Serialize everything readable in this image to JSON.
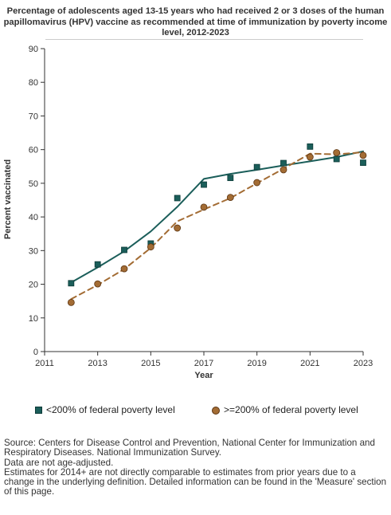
{
  "title_lines": [
    "Percentage of adolescents aged 13-15 years who had received 2 or 3 doses of the human",
    "papillomavirus (HPV) vaccine as recommended at time of immunization by poverty income",
    "level, 2012-2023"
  ],
  "footer": {
    "source": "Source: Centers for Disease Control and Prevention, National Center for Immunization and Respiratory Diseases. National Immunization Survey.",
    "note1": "Data are not age-adjusted.",
    "note2": "Estimates for 2014+ are not directly comparable to estimates from prior years due to a change in the underlying definition. Detailed information can be found in the 'Measure' section of this page."
  },
  "colors": {
    "series1": "#1b5e5a",
    "series2": "#a36c34",
    "axis": "#333333"
  },
  "chart_data": {
    "type": "line",
    "xlabel": "Year",
    "ylabel": "Percent vaccinated",
    "xlim": [
      2011,
      2023
    ],
    "ylim": [
      0,
      90
    ],
    "x_ticks": [
      2011,
      2013,
      2015,
      2017,
      2019,
      2021,
      2023
    ],
    "y_ticks": [
      0,
      10,
      20,
      30,
      40,
      50,
      60,
      70,
      80,
      90
    ],
    "grid": false,
    "legend_position": "bottom",
    "series": [
      {
        "name": "<200% of federal poverty level",
        "marker": "square",
        "line_style": "solid",
        "color": "#1b5e5a",
        "points": [
          {
            "x": 2012,
            "y": 20.3
          },
          {
            "x": 2013,
            "y": 25.9
          },
          {
            "x": 2014,
            "y": 30.2
          },
          {
            "x": 2015,
            "y": 32.1
          },
          {
            "x": 2016,
            "y": 45.6
          },
          {
            "x": 2017,
            "y": 49.6
          },
          {
            "x": 2018,
            "y": 51.6
          },
          {
            "x": 2019,
            "y": 54.8
          },
          {
            "x": 2020,
            "y": 56.0
          },
          {
            "x": 2021,
            "y": 60.9
          },
          {
            "x": 2022,
            "y": 57.2
          },
          {
            "x": 2023,
            "y": 56.1
          }
        ],
        "trend": [
          {
            "x": 2012,
            "y": 20.5
          },
          {
            "x": 2013,
            "y": 25.0
          },
          {
            "x": 2014,
            "y": 29.8
          },
          {
            "x": 2015,
            "y": 35.7
          },
          {
            "x": 2016,
            "y": 43.0
          },
          {
            "x": 2017,
            "y": 51.3
          },
          {
            "x": 2018,
            "y": 52.8
          },
          {
            "x": 2019,
            "y": 54.0
          },
          {
            "x": 2020,
            "y": 55.3
          },
          {
            "x": 2021,
            "y": 56.5
          },
          {
            "x": 2022,
            "y": 57.8
          },
          {
            "x": 2023,
            "y": 59.5
          }
        ]
      },
      {
        "name": ">=200% of federal poverty level",
        "marker": "circle",
        "line_style": "dashed",
        "color": "#a36c34",
        "points": [
          {
            "x": 2012,
            "y": 14.6
          },
          {
            "x": 2013,
            "y": 20.1
          },
          {
            "x": 2014,
            "y": 24.6
          },
          {
            "x": 2015,
            "y": 31.1
          },
          {
            "x": 2016,
            "y": 36.7
          },
          {
            "x": 2017,
            "y": 42.9
          },
          {
            "x": 2018,
            "y": 45.8
          },
          {
            "x": 2019,
            "y": 50.2
          },
          {
            "x": 2020,
            "y": 54.0
          },
          {
            "x": 2021,
            "y": 57.8
          },
          {
            "x": 2022,
            "y": 59.1
          },
          {
            "x": 2023,
            "y": 58.3
          }
        ],
        "trend": [
          {
            "x": 2012,
            "y": 15.6
          },
          {
            "x": 2013,
            "y": 19.8
          },
          {
            "x": 2014,
            "y": 24.5
          },
          {
            "x": 2015,
            "y": 30.8
          },
          {
            "x": 2016,
            "y": 38.7
          },
          {
            "x": 2017,
            "y": 42.2
          },
          {
            "x": 2018,
            "y": 45.6
          },
          {
            "x": 2019,
            "y": 50.0
          },
          {
            "x": 2020,
            "y": 54.3
          },
          {
            "x": 2021,
            "y": 58.8
          },
          {
            "x": 2022,
            "y": 58.6
          },
          {
            "x": 2023,
            "y": 59.2
          }
        ]
      }
    ]
  }
}
